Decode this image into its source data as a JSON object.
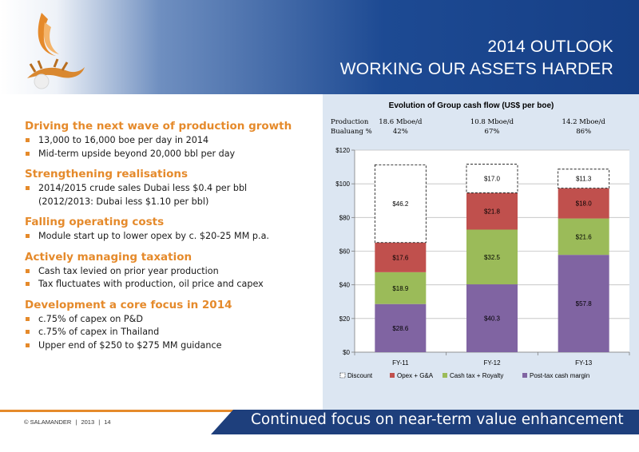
{
  "header": {
    "title_line1": "2014 OUTLOOK",
    "title_line2": "WORKING OUR ASSETS HARDER"
  },
  "sections": [
    {
      "heading": "Driving the next wave of production growth",
      "bullets": [
        "13,000 to 16,000 boe per day in 2014",
        "Mid-term upside beyond 20,000 bbl per day"
      ]
    },
    {
      "heading": "Strengthening realisations",
      "bullets": [
        "2014/2015 crude sales Dubai less $0.4 per bbl",
        "(2012/2013: Dubai less $1.10 per bbl)"
      ]
    },
    {
      "heading": "Falling operating costs",
      "bullets": [
        "Module start up to lower opex by c. $20-25 MM p.a."
      ]
    },
    {
      "heading": "Actively managing taxation",
      "bullets": [
        "Cash tax levied on prior year production",
        "Tax fluctuates with production, oil price and capex"
      ]
    },
    {
      "heading": "Development a core focus in 2014",
      "bullets": [
        "c.75% of capex on P&D",
        "c.75% of capex in Thailand",
        "Upper end of $250 to $275 MM guidance"
      ]
    }
  ],
  "chart_data": {
    "type": "bar",
    "stacked": true,
    "title": "Evolution of Group cash flow (US$ per boe)",
    "categories": [
      "FY-11",
      "FY-12",
      "FY-13"
    ],
    "ylim": [
      0,
      120
    ],
    "yticks": [
      0,
      20,
      40,
      60,
      80,
      100,
      120
    ],
    "ytick_labels": [
      "$0",
      "$20",
      "$40",
      "$60",
      "$80",
      "$100",
      "$120"
    ],
    "row_labels": [
      "Production",
      "Bualuang %"
    ],
    "production": [
      "18.6 Mboe/d",
      "10.8 Mboe/d",
      "14.2 Mboe/d"
    ],
    "bualuang": [
      "42%",
      "67%",
      "86%"
    ],
    "series": [
      {
        "name": "Post-tax cash margin",
        "color": "#8064a2",
        "values": [
          28.6,
          40.3,
          57.8
        ],
        "labels": [
          "$28.6",
          "$40.3",
          "$57.8"
        ]
      },
      {
        "name": "Cash tax + Royalty",
        "color": "#9bbb59",
        "values": [
          18.9,
          32.5,
          21.6
        ],
        "labels": [
          "$18.9",
          "$32.5",
          "$21.6"
        ]
      },
      {
        "name": "Opex + G&A",
        "color": "#c0504d",
        "values": [
          17.6,
          21.8,
          18.0
        ],
        "labels": [
          "$17.6",
          "$21.8",
          "$18.0"
        ]
      },
      {
        "name": "Discount",
        "color": "#ffffff",
        "dashed": true,
        "values": [
          46.2,
          17.0,
          11.3
        ],
        "labels": [
          "$46.2",
          "$17.0",
          "$11.3"
        ]
      }
    ],
    "legend_order": [
      3,
      2,
      1,
      0
    ],
    "legend_position": "bottom"
  },
  "footer": {
    "copyright": "© SALAMANDER",
    "sep1": "|",
    "year": "2013",
    "sep2": "|",
    "page": "14",
    "tagline": "Continued focus on near-term value enhancement"
  },
  "colors": {
    "accent_orange": "#e58a2b",
    "header_blue": "#1d4a93",
    "footer_blue": "#1e3f7c",
    "chart_bg": "#dce6f2"
  }
}
